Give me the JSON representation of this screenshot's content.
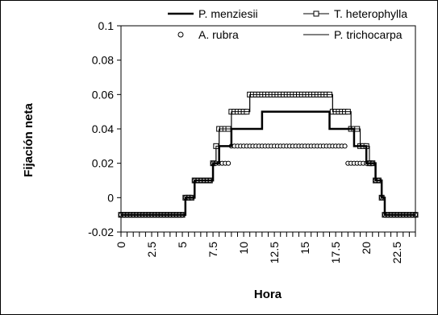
{
  "chart_data": {
    "type": "line",
    "xlabel": "Hora",
    "ylabel": "Fijación neta",
    "xlim": [
      0,
      24
    ],
    "ylim": [
      -0.02,
      0.1
    ],
    "x_ticks": [
      "0",
      "2.5",
      "5",
      "7.5",
      "10",
      "12.5",
      "15",
      "17.5",
      "20",
      "22.5"
    ],
    "y_ticks": [
      "-0.02",
      "0",
      "0.02",
      "0.04",
      "0.06",
      "0.08",
      "0.1"
    ],
    "legend": [
      {
        "name": "P. menziesii"
      },
      {
        "name": "T. heterophylla"
      },
      {
        "name": "A. rubra"
      },
      {
        "name": "P. trichocarpa"
      }
    ],
    "series": [
      {
        "name": "P. menziesii",
        "style": "thick-line",
        "points": [
          [
            0,
            -0.01
          ],
          [
            5.25,
            -0.01
          ],
          [
            5.25,
            0
          ],
          [
            6,
            0
          ],
          [
            6,
            0.01
          ],
          [
            7.5,
            0.01
          ],
          [
            7.5,
            0.02
          ],
          [
            8,
            0.02
          ],
          [
            8,
            0.03
          ],
          [
            9,
            0.03
          ],
          [
            9,
            0.04
          ],
          [
            11.5,
            0.04
          ],
          [
            11.5,
            0.05
          ],
          [
            17,
            0.05
          ],
          [
            17,
            0.04
          ],
          [
            19,
            0.04
          ],
          [
            19,
            0.03
          ],
          [
            20,
            0.03
          ],
          [
            20,
            0.02
          ],
          [
            20.75,
            0.02
          ],
          [
            20.75,
            0.01
          ],
          [
            21.25,
            0.01
          ],
          [
            21.25,
            0
          ],
          [
            21.5,
            0
          ],
          [
            21.5,
            -0.01
          ],
          [
            24,
            -0.01
          ]
        ]
      },
      {
        "name": "T. heterophylla",
        "style": "line-square",
        "points": [
          [
            0,
            -0.01
          ],
          [
            5.25,
            -0.01
          ],
          [
            5.25,
            0
          ],
          [
            6,
            0
          ],
          [
            6,
            0.01
          ],
          [
            7.5,
            0.01
          ],
          [
            7.5,
            0.02
          ],
          [
            7.75,
            0.02
          ],
          [
            7.75,
            0.03
          ],
          [
            8,
            0.03
          ],
          [
            8,
            0.04
          ],
          [
            9,
            0.04
          ],
          [
            9,
            0.05
          ],
          [
            10.5,
            0.05
          ],
          [
            10.5,
            0.06
          ],
          [
            17.25,
            0.06
          ],
          [
            17.25,
            0.05
          ],
          [
            18.75,
            0.05
          ],
          [
            18.75,
            0.04
          ],
          [
            19.5,
            0.04
          ],
          [
            19.5,
            0.03
          ],
          [
            20.25,
            0.03
          ],
          [
            20.25,
            0.02
          ],
          [
            20.75,
            0.02
          ],
          [
            20.75,
            0.01
          ],
          [
            21.25,
            0.01
          ],
          [
            21.25,
            0
          ],
          [
            21.5,
            0
          ],
          [
            21.5,
            -0.01
          ],
          [
            24,
            -0.01
          ]
        ]
      },
      {
        "name": "A. rubra",
        "style": "circle",
        "points": [
          [
            0,
            -0.01
          ],
          [
            5.25,
            -0.01
          ],
          [
            5.25,
            0
          ],
          [
            6,
            0
          ],
          [
            6,
            0.01
          ],
          [
            7.5,
            0.01
          ],
          [
            7.5,
            0.02
          ],
          [
            9,
            0.02
          ],
          [
            9,
            0.03
          ],
          [
            18.5,
            0.03
          ],
          [
            18.5,
            0.02
          ],
          [
            20.75,
            0.02
          ],
          [
            20.75,
            0.01
          ],
          [
            21.25,
            0.01
          ],
          [
            21.25,
            0
          ],
          [
            21.5,
            0
          ],
          [
            21.5,
            -0.01
          ],
          [
            24,
            -0.01
          ]
        ]
      },
      {
        "name": "P. trichocarpa",
        "style": "thin-line",
        "points": [
          [
            0,
            -0.01
          ],
          [
            5.25,
            -0.01
          ],
          [
            5.25,
            0
          ],
          [
            6,
            0
          ],
          [
            6,
            0.01
          ],
          [
            7.5,
            0.01
          ],
          [
            7.5,
            0.02
          ],
          [
            7.75,
            0.02
          ],
          [
            7.75,
            0.03
          ],
          [
            8,
            0.03
          ],
          [
            8,
            0.04
          ],
          [
            9,
            0.04
          ],
          [
            9,
            0.05
          ],
          [
            10.5,
            0.05
          ],
          [
            10.5,
            0.06
          ],
          [
            17.25,
            0.06
          ],
          [
            17.25,
            0.05
          ],
          [
            18.75,
            0.05
          ],
          [
            18.75,
            0.04
          ],
          [
            19.5,
            0.04
          ],
          [
            19.5,
            0.03
          ],
          [
            20.25,
            0.03
          ],
          [
            20.25,
            0.02
          ],
          [
            20.75,
            0.02
          ],
          [
            20.75,
            0.01
          ],
          [
            21.25,
            0.01
          ],
          [
            21.25,
            0
          ],
          [
            21.5,
            0
          ],
          [
            21.5,
            -0.01
          ],
          [
            24,
            -0.01
          ]
        ]
      }
    ]
  }
}
